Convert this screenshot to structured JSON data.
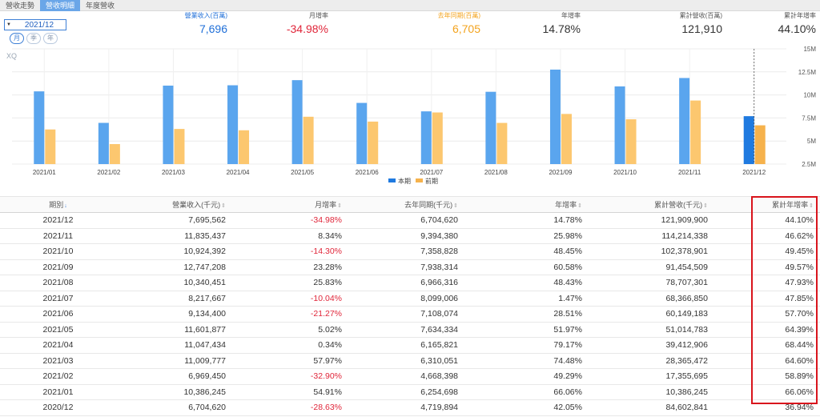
{
  "tabs": [
    {
      "label": "營收走勢",
      "active": false
    },
    {
      "label": "營收明細",
      "active": true
    },
    {
      "label": "年度營收",
      "active": false
    }
  ],
  "date_select": {
    "value": "2021/12"
  },
  "period_buttons": [
    {
      "label": "月",
      "active": true
    },
    {
      "label": "季",
      "active": false
    },
    {
      "label": "年",
      "active": false
    }
  ],
  "summary": [
    {
      "label": "營業收入(百萬)",
      "value": "7,696",
      "label_color": "#1f6fd8",
      "value_color": "#1f6fd8"
    },
    {
      "label": "月增率",
      "value": "-34.98%",
      "label_color": "#555555",
      "value_color": "#e0263a"
    },
    {
      "label": "去年同期(百萬)",
      "value": "6,705",
      "label_color": "#f3a31d",
      "value_color": "#f3a31d"
    },
    {
      "label": "年增率",
      "value": "14.78%",
      "label_color": "#555555",
      "value_color": "#333333"
    },
    {
      "label": "累計營收(百萬)",
      "value": "121,910",
      "label_color": "#555555",
      "value_color": "#333333"
    },
    {
      "label": "累計年增率",
      "value": "44.10%",
      "label_color": "#555555",
      "value_color": "#333333"
    }
  ],
  "chart_data": {
    "type": "bar",
    "watermark": "XQ",
    "categories": [
      "2021/01",
      "2021/02",
      "2021/03",
      "2021/04",
      "2021/05",
      "2021/06",
      "2021/07",
      "2021/08",
      "2021/09",
      "2021/10",
      "2021/11",
      "2021/12"
    ],
    "series": [
      {
        "name": "本期",
        "color": "#5aa5ee",
        "values": [
          10.386,
          6.969,
          11.01,
          11.047,
          11.602,
          9.134,
          8.218,
          10.34,
          12.747,
          10.924,
          11.835,
          7.696
        ]
      },
      {
        "name": "前期",
        "color": "#fcc76f",
        "values": [
          6.255,
          4.668,
          6.31,
          6.166,
          7.634,
          7.108,
          8.099,
          6.966,
          7.938,
          7.359,
          9.394,
          6.705
        ]
      }
    ],
    "highlight": {
      "index": 11,
      "color": "#1f7ae0",
      "prior_color": "#f6b24c"
    },
    "yticks": [
      "2.5M",
      "5M",
      "7.5M",
      "10M",
      "12.5M",
      "15M"
    ],
    "ylim": [
      2.5,
      15
    ],
    "grid": true,
    "legend_position": "bottom-center"
  },
  "table": {
    "headers": [
      {
        "label": "期別",
        "sort": "↓",
        "sorted": true
      },
      {
        "label": "營業收入(千元)",
        "sort": "⇕",
        "sorted": false
      },
      {
        "label": "月增率",
        "sort": "⇕",
        "sorted": false
      },
      {
        "label": "去年同期(千元)",
        "sort": "⇕",
        "sorted": false
      },
      {
        "label": "年增率",
        "sort": "⇕",
        "sorted": false
      },
      {
        "label": "累計營收(千元)",
        "sort": "⇕",
        "sorted": false
      },
      {
        "label": "累計年增率",
        "sort": "⇕",
        "sorted": false
      }
    ],
    "rows": [
      [
        "2021/12",
        "7,695,562",
        "-34.98%",
        "6,704,620",
        "14.78%",
        "121,909,900",
        "44.10%"
      ],
      [
        "2021/11",
        "11,835,437",
        "8.34%",
        "9,394,380",
        "25.98%",
        "114,214,338",
        "46.62%"
      ],
      [
        "2021/10",
        "10,924,392",
        "-14.30%",
        "7,358,828",
        "48.45%",
        "102,378,901",
        "49.45%"
      ],
      [
        "2021/09",
        "12,747,208",
        "23.28%",
        "7,938,314",
        "60.58%",
        "91,454,509",
        "49.57%"
      ],
      [
        "2021/08",
        "10,340,451",
        "25.83%",
        "6,966,316",
        "48.43%",
        "78,707,301",
        "47.93%"
      ],
      [
        "2021/07",
        "8,217,667",
        "-10.04%",
        "8,099,006",
        "1.47%",
        "68,366,850",
        "47.85%"
      ],
      [
        "2021/06",
        "9,134,400",
        "-21.27%",
        "7,108,074",
        "28.51%",
        "60,149,183",
        "57.70%"
      ],
      [
        "2021/05",
        "11,601,877",
        "5.02%",
        "7,634,334",
        "51.97%",
        "51,014,783",
        "64.39%"
      ],
      [
        "2021/04",
        "11,047,434",
        "0.34%",
        "6,165,821",
        "79.17%",
        "39,412,906",
        "68.44%"
      ],
      [
        "2021/03",
        "11,009,777",
        "57.97%",
        "6,310,051",
        "74.48%",
        "28,365,472",
        "64.60%"
      ],
      [
        "2021/02",
        "6,969,450",
        "-32.90%",
        "4,668,398",
        "49.29%",
        "17,355,695",
        "58.89%"
      ],
      [
        "2021/01",
        "10,386,245",
        "54.91%",
        "6,254,698",
        "66.06%",
        "10,386,245",
        "66.06%"
      ],
      [
        "2020/12",
        "6,704,620",
        "-28.63%",
        "4,719,894",
        "42.05%",
        "84,602,841",
        "36.94%"
      ]
    ]
  }
}
